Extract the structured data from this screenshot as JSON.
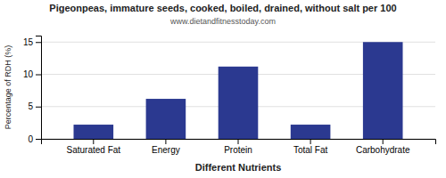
{
  "chart_data": {
    "type": "bar",
    "title": "Pigeonpeas, immature seeds, cooked, boiled, drained, without salt per 100",
    "subtitle": "www.dietandfitnesstoday.com",
    "categories": [
      "Saturated Fat",
      "Energy",
      "Protein",
      "Total Fat",
      "Carbohydrate"
    ],
    "values": [
      2.2,
      6.2,
      11.2,
      2.2,
      15.0
    ],
    "color": "#2b3990",
    "xlabel": "Different Nutrients",
    "ylabel": "Percentage of RDH (%)",
    "ylim": [
      0,
      16
    ],
    "yticks": [
      0,
      5,
      10,
      15
    ],
    "grid": true
  }
}
